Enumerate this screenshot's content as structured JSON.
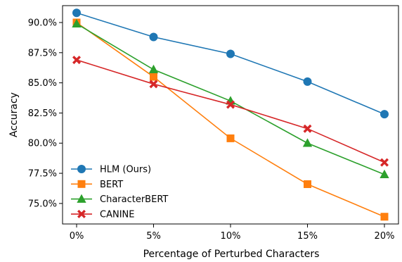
{
  "chart_data": {
    "type": "line",
    "title": "",
    "xlabel": "Percentage of Perturbed Characters",
    "ylabel": "Accuracy",
    "categories": [
      "0%",
      "5%",
      "10%",
      "15%",
      "20%"
    ],
    "y_ticks": [
      "75.0%",
      "77.5%",
      "80.0%",
      "82.5%",
      "85.0%",
      "87.5%",
      "90.0%"
    ],
    "y_tick_values": [
      75.0,
      77.5,
      80.0,
      82.5,
      85.0,
      87.5,
      90.0
    ],
    "ylim": [
      73.3,
      91.4
    ],
    "grid": false,
    "legend_position": "lower-left",
    "series": [
      {
        "name": "HLM (Ours)",
        "color": "#1f77b4",
        "marker": "circle",
        "values": [
          90.8,
          88.8,
          87.4,
          85.1,
          82.4
        ]
      },
      {
        "name": "BERT",
        "color": "#ff7f0e",
        "marker": "square",
        "values": [
          90.0,
          85.5,
          80.4,
          76.6,
          73.9
        ]
      },
      {
        "name": "CharacterBERT",
        "color": "#2ca02c",
        "marker": "triangle",
        "values": [
          89.9,
          86.1,
          83.5,
          80.0,
          77.4
        ]
      },
      {
        "name": "CANINE",
        "color": "#d62728",
        "marker": "x",
        "values": [
          86.9,
          84.9,
          83.2,
          81.2,
          78.4
        ]
      }
    ]
  }
}
